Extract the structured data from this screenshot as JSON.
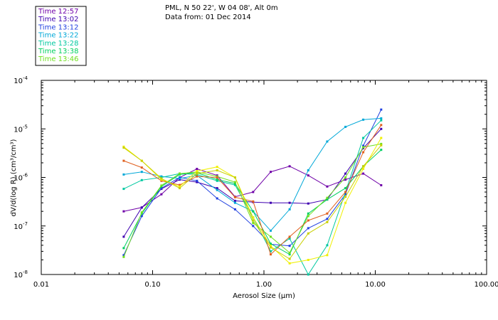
{
  "header": {
    "station": "PML, N 50 22', W 04 08', Alt 0m",
    "date_line": "Data from: 01 Dec 2014"
  },
  "chart_data": {
    "type": "line",
    "x_scale": "log",
    "y_scale": "log",
    "xlim": [
      0.01,
      100
    ],
    "ylim": [
      1e-08,
      0.0001
    ],
    "xlabel": "Aerosol Size (μm)",
    "ylabel": "dV/d(log R) (cm³/cm³)",
    "x_tick_labels": [
      {
        "value": 0.01,
        "label": "0.01"
      },
      {
        "value": 0.1,
        "label": "0.10"
      },
      {
        "value": 1,
        "label": "1.00"
      },
      {
        "value": 10,
        "label": "10.00"
      },
      {
        "value": 100,
        "label": "100.00"
      }
    ],
    "y_tick_labels": [
      {
        "value": 0.0001,
        "base": "10",
        "exp": "-4"
      },
      {
        "value": 1e-05,
        "base": "10",
        "exp": "-5"
      },
      {
        "value": 1e-06,
        "base": "10",
        "exp": "-6"
      },
      {
        "value": 1e-07,
        "base": "10",
        "exp": "-7"
      },
      {
        "value": 1e-08,
        "base": "10",
        "exp": "-8"
      }
    ],
    "legend_position": "top-left",
    "grid": false,
    "x": [
      0.055,
      0.08,
      0.12,
      0.175,
      0.25,
      0.38,
      0.55,
      0.8,
      1.15,
      1.7,
      2.5,
      3.7,
      5.4,
      7.8,
      11.3
    ],
    "series": [
      {
        "name": "Time 12:57",
        "color": "#6f00a8",
        "values": [
          2e-07,
          2.4e-07,
          4.5e-07,
          1e-06,
          1.5e-06,
          1.1e-06,
          4e-07,
          5e-07,
          1.3e-06,
          1.7e-06,
          1.1e-06,
          6.5e-07,
          9e-07,
          1.2e-06,
          6.9e-07
        ]
      },
      {
        "name": "Time 13:02",
        "color": "#3f00b0",
        "values": [
          6e-08,
          2.4e-07,
          5.8e-07,
          9e-07,
          8e-07,
          6e-07,
          3.3e-07,
          3.1e-07,
          3e-07,
          3e-07,
          2.9e-07,
          3.5e-07,
          1.2e-06,
          4e-06,
          1e-05
        ]
      },
      {
        "name": "Time 13:12",
        "color": "#2040e0",
        "values": [
          2.5e-08,
          1.6e-07,
          6e-07,
          1e-06,
          8.5e-07,
          3.7e-07,
          2.2e-07,
          1e-07,
          4.2e-08,
          3.9e-08,
          9e-08,
          1.4e-07,
          4.5e-07,
          4.5e-06,
          2.5e-05
        ]
      },
      {
        "name": "Time 13:22",
        "color": "#00a8d8",
        "values": [
          1.15e-06,
          1.3e-06,
          1.05e-06,
          9.5e-07,
          1.1e-06,
          5.5e-07,
          3e-07,
          2e-07,
          8e-08,
          2.2e-07,
          1.4e-06,
          5.5e-06,
          1.1e-05,
          1.55e-05,
          1.65e-05
        ]
      },
      {
        "name": "Time 13:28",
        "color": "#00c8a0",
        "values": [
          5.8e-07,
          8.8e-07,
          1e-06,
          1.2e-06,
          1.15e-06,
          8.5e-07,
          7e-07,
          1.5e-07,
          3e-08,
          5.5e-08,
          1e-08,
          4e-08,
          5e-07,
          6.5e-06,
          1.5e-05
        ]
      },
      {
        "name": "Time 13:38",
        "color": "#00d060",
        "values": [
          3.5e-08,
          1.8e-07,
          6.5e-07,
          1.15e-06,
          1.25e-06,
          9e-07,
          7.5e-07,
          2e-07,
          4.3e-08,
          2.6e-08,
          1.8e-07,
          3.5e-07,
          6e-07,
          1.7e-06,
          3.7e-06
        ]
      },
      {
        "name": "Time 13:46",
        "color": "#70e020",
        "values": [
          2.3e-08,
          1.9e-07,
          6.8e-07,
          1.2e-06,
          1.3e-06,
          1.05e-06,
          8e-07,
          1.15e-07,
          6e-08,
          2.8e-08,
          1.6e-07,
          3.8e-07,
          1e-06,
          4.2e-06,
          4.9e-06
        ]
      },
      {
        "color": "#e06020",
        "values": [
          2.2e-06,
          1.6e-06,
          8.5e-07,
          7e-07,
          1.05e-06,
          1e-06,
          3.9e-07,
          3.2e-07,
          2.6e-08,
          6e-08,
          1.3e-07,
          1.8e-07,
          5e-07,
          3.3e-06,
          1.2e-05
        ]
      },
      {
        "color": "#f0f000",
        "values": [
          4.3e-06,
          2.2e-06,
          9e-07,
          6.5e-07,
          1.35e-06,
          1.65e-06,
          1e-06,
          1.5e-07,
          3.9e-08,
          1.7e-08,
          2e-08,
          2.5e-08,
          3e-07,
          1.5e-06,
          6.5e-06
        ]
      },
      {
        "color": "#c8d000",
        "values": [
          4.1e-06,
          2.2e-06,
          9.5e-07,
          6e-07,
          1.2e-06,
          1.4e-06,
          1e-06,
          1.3e-07,
          3.6e-08,
          2.1e-08,
          7e-08,
          1.2e-07,
          4e-07,
          1.7e-06,
          4.6e-06
        ]
      }
    ]
  }
}
